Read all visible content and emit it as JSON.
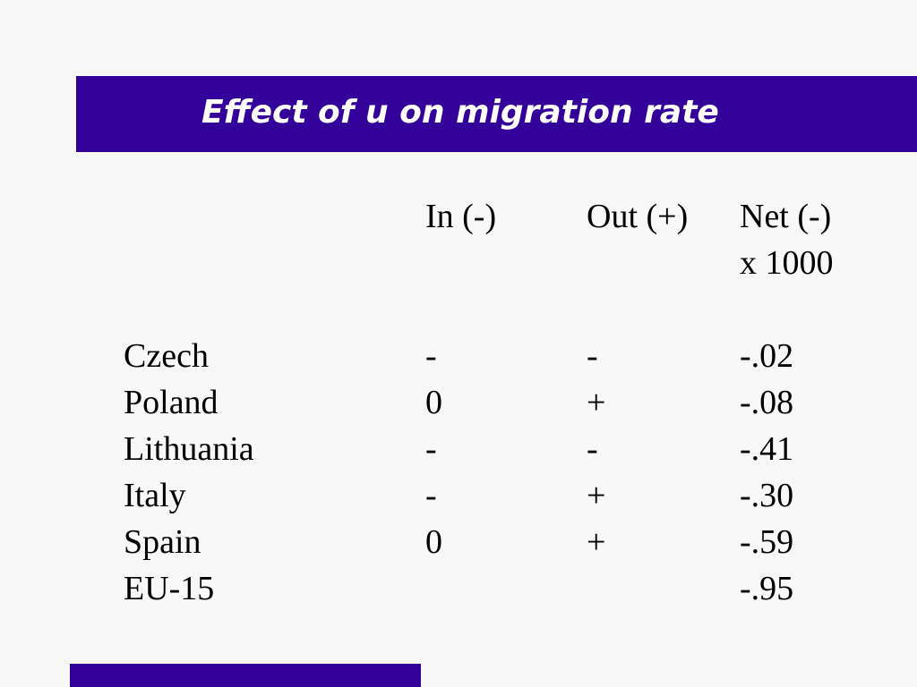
{
  "slide": {
    "title": "Effect of u on migration rate",
    "accent_color": "#330099"
  },
  "table": {
    "headers": {
      "in": "In (-)",
      "out": "Out (+)",
      "net_line1": "Net (-)",
      "net_line2": "x 1000"
    },
    "rows": [
      {
        "country": "Czech",
        "in": "-",
        "out": "-",
        "net": "-.02"
      },
      {
        "country": "Poland",
        "in": "0",
        "out": "+",
        "net": "-.08"
      },
      {
        "country": "Lithuania",
        "in": "-",
        "out": "-",
        "net": "-.41"
      },
      {
        "country": "Italy",
        "in": "-",
        "out": "+",
        "net": "-.30"
      },
      {
        "country": "Spain",
        "in": "0",
        "out": "+",
        "net": "-.59"
      },
      {
        "country": "EU-15",
        "in": "",
        "out": "",
        "net": "-.95"
      }
    ]
  }
}
